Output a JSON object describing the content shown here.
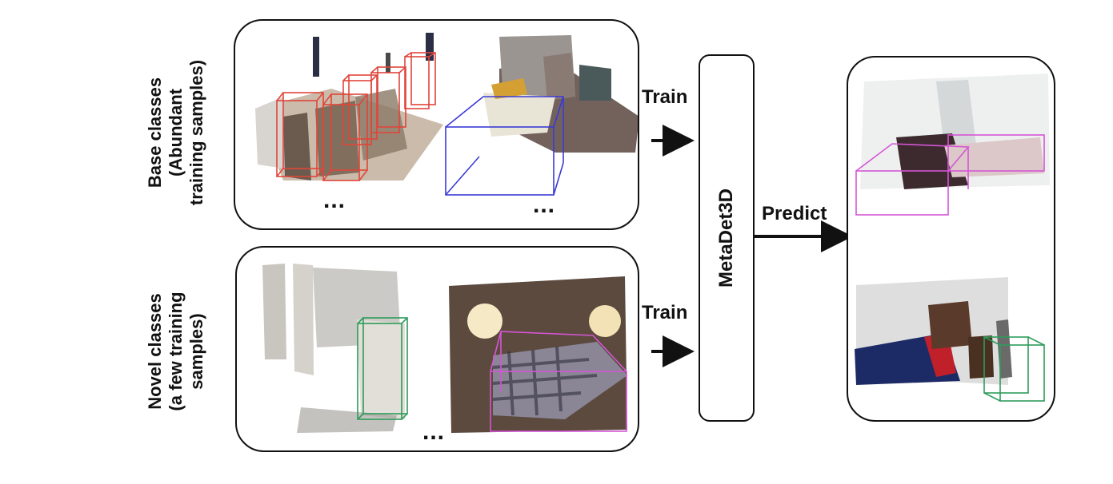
{
  "base_label": [
    "Base classes",
    "(Abundant",
    "training samples)"
  ],
  "novel_label": [
    "Novel classes",
    "(a few training",
    "samples)"
  ],
  "ellipsis": "...",
  "train_label": "Train",
  "model_name": "MetaDet3D",
  "predict_label": "Predict",
  "colors": {
    "base_box_red": "#e0453a",
    "base_box_blue": "#3a3ad6",
    "novel_box_green": "#2e9b5a",
    "novel_box_magenta": "#d655d6"
  }
}
